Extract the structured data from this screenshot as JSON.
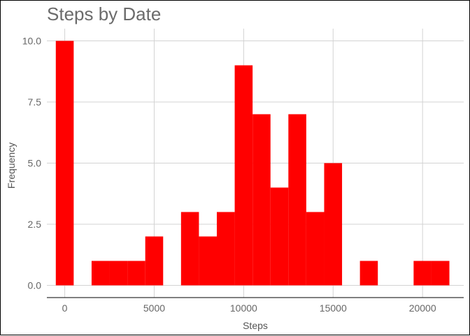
{
  "chart_data": {
    "type": "bar",
    "title": "Steps by Date",
    "xlabel": "Steps",
    "ylabel": "Frequency",
    "bar_color": "#FF0000",
    "grid_color": "#D3D3D3",
    "grid": true,
    "bin_width": 1000,
    "bin_centers": [
      0,
      2000,
      3000,
      4000,
      5000,
      7000,
      8000,
      9000,
      10000,
      11000,
      12000,
      13000,
      14000,
      15000,
      17000,
      20000,
      21000
    ],
    "counts": [
      10,
      1,
      1,
      1,
      2,
      3,
      2,
      3,
      9,
      7,
      4,
      7,
      3,
      5,
      1,
      1,
      1
    ],
    "xlim": [
      -1000,
      22300
    ],
    "ylim": [
      -0.5,
      10.5
    ],
    "x_ticks": [
      0,
      5000,
      10000,
      15000,
      20000
    ],
    "x_tick_labels": [
      "0",
      "5000",
      "10000",
      "15000",
      "20000"
    ],
    "y_ticks": [
      0,
      2.5,
      5,
      7.5,
      10
    ],
    "y_tick_labels": [
      "0.0",
      "2.5",
      "5.0",
      "7.5",
      "10.0"
    ]
  }
}
